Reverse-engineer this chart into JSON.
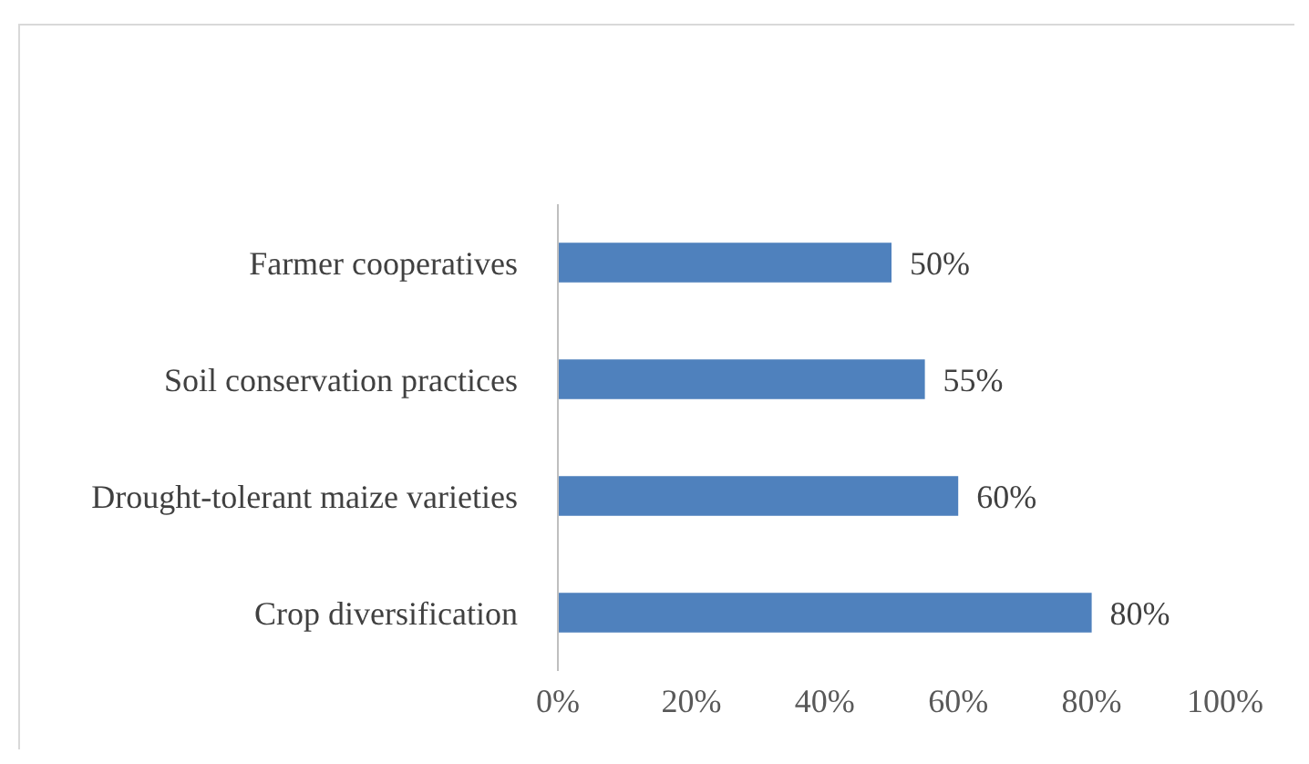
{
  "chart_data": {
    "type": "bar",
    "orientation": "horizontal",
    "categories": [
      "Farmer cooperatives",
      "Soil conservation practices",
      "Drought-tolerant maize varieties",
      "Crop diversification"
    ],
    "values": [
      50,
      55,
      60,
      80
    ],
    "color": "#4f81bd",
    "value_labels": [
      "50%",
      "55%",
      "60%",
      "80%"
    ],
    "xlim": [
      0,
      100
    ],
    "xticks": [
      {
        "value": 0,
        "label": "0%"
      },
      {
        "value": 20,
        "label": "20%"
      },
      {
        "value": 40,
        "label": "40%"
      },
      {
        "value": 60,
        "label": "60%"
      },
      {
        "value": 80,
        "label": "80%"
      },
      {
        "value": 100,
        "label": "100%"
      }
    ],
    "grid": false
  }
}
